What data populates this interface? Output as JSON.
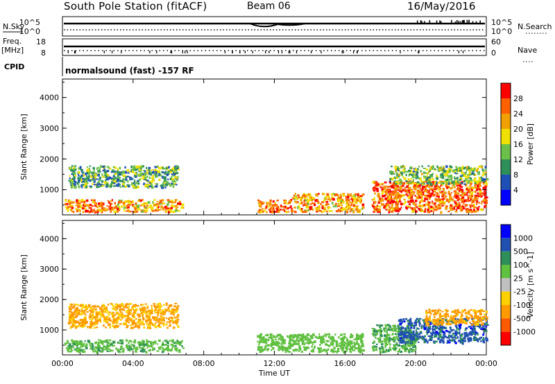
{
  "header": {
    "station": "South Pole Station (fitACF)",
    "beam": "Beam 06",
    "date": "16/May/2016"
  },
  "summary_panels": {
    "nsky_label": "N.Sky",
    "nsearch_label": "N.Search",
    "nsky_ticks": [
      "10^5",
      "10^0"
    ],
    "nsearch_ticks": [
      "10^5",
      "10^0"
    ],
    "freq_label_line1": "Freq.",
    "freq_label_line2": "[MHz]",
    "freq_ticks": [
      "18",
      "8"
    ],
    "nave_label": "Nave",
    "nave_ticks": [
      "60",
      "0"
    ],
    "cpid_label": "CPID",
    "cpid_text": "normalsound (fast) -157 RF"
  },
  "colors": {
    "power_scale": [
      "#0000ff",
      "#1e4fb4",
      "#2f8f5a",
      "#6cc04a",
      "#f0e000",
      "#f0a000",
      "#ff6000",
      "#ff0000"
    ],
    "velocity_scale": [
      "#ff0000",
      "#ff5a00",
      "#ff9a00",
      "#ffd000",
      "#c0c0c0",
      "#60c040",
      "#2f8f5a",
      "#2050b0",
      "#0000ff"
    ]
  },
  "chart_data": [
    {
      "type": "heatmap",
      "name": "power-panel",
      "ylabel": "Slant Range [km]",
      "y_ticks": [
        "1000",
        "2000",
        "3000",
        "4000"
      ],
      "ylim": [
        180,
        4600
      ],
      "x_ticks": [
        "00:00",
        "04:00",
        "08:00",
        "12:00",
        "16:00",
        "20:00",
        "00:00"
      ],
      "xlim_hours": [
        0,
        24
      ],
      "colorbar_label": "Power [dB]",
      "colorbar_ticks": [
        "4",
        "8",
        "12",
        "16",
        "20",
        "24",
        "28"
      ],
      "colorbar_range": [
        0,
        32
      ],
      "regions": [
        {
          "t": [
            0.1,
            3.0
          ],
          "r": [
            300,
            700
          ],
          "level": 24
        },
        {
          "t": [
            3.0,
            6.8
          ],
          "r": [
            300,
            700
          ],
          "level": 22
        },
        {
          "t": [
            0.3,
            6.5
          ],
          "r": [
            1100,
            1800
          ],
          "level": 12
        },
        {
          "t": [
            11.0,
            13.0
          ],
          "r": [
            300,
            700
          ],
          "level": 24
        },
        {
          "t": [
            13.0,
            17.0
          ],
          "r": [
            300,
            900
          ],
          "level": 22
        },
        {
          "t": [
            17.5,
            24.0
          ],
          "r": [
            300,
            1300
          ],
          "level": 26
        },
        {
          "t": [
            18.5,
            24.0
          ],
          "r": [
            1200,
            1800
          ],
          "level": 14
        }
      ]
    },
    {
      "type": "heatmap",
      "name": "velocity-panel",
      "ylabel": "Slant Range [km]",
      "y_ticks": [
        "1000",
        "2000",
        "3000",
        "4000"
      ],
      "ylim": [
        180,
        4600
      ],
      "x_ticks": [
        "00:00",
        "04:00",
        "08:00",
        "12:00",
        "16:00",
        "20:00",
        "00:00"
      ],
      "xlim_hours": [
        0,
        24
      ],
      "xlabel": "Time UT",
      "colorbar_label": "Velocity [m s^-1]",
      "colorbar_ticks": [
        "1000",
        "500",
        "100",
        "25",
        "-25",
        "-100",
        "-500",
        "-1000"
      ],
      "regions": [
        {
          "t": [
            0.3,
            6.5
          ],
          "r": [
            1100,
            1900
          ],
          "level": -120
        },
        {
          "t": [
            0.1,
            6.8
          ],
          "r": [
            300,
            700
          ],
          "level": 80
        },
        {
          "t": [
            11.0,
            17.0
          ],
          "r": [
            300,
            900
          ],
          "level": 60
        },
        {
          "t": [
            17.5,
            20.0
          ],
          "r": [
            300,
            1200
          ],
          "level": 90
        },
        {
          "t": [
            19.0,
            24.0
          ],
          "r": [
            600,
            1400
          ],
          "level": 700
        },
        {
          "t": [
            20.5,
            24.0
          ],
          "r": [
            1200,
            1700
          ],
          "level": -150
        }
      ]
    }
  ]
}
